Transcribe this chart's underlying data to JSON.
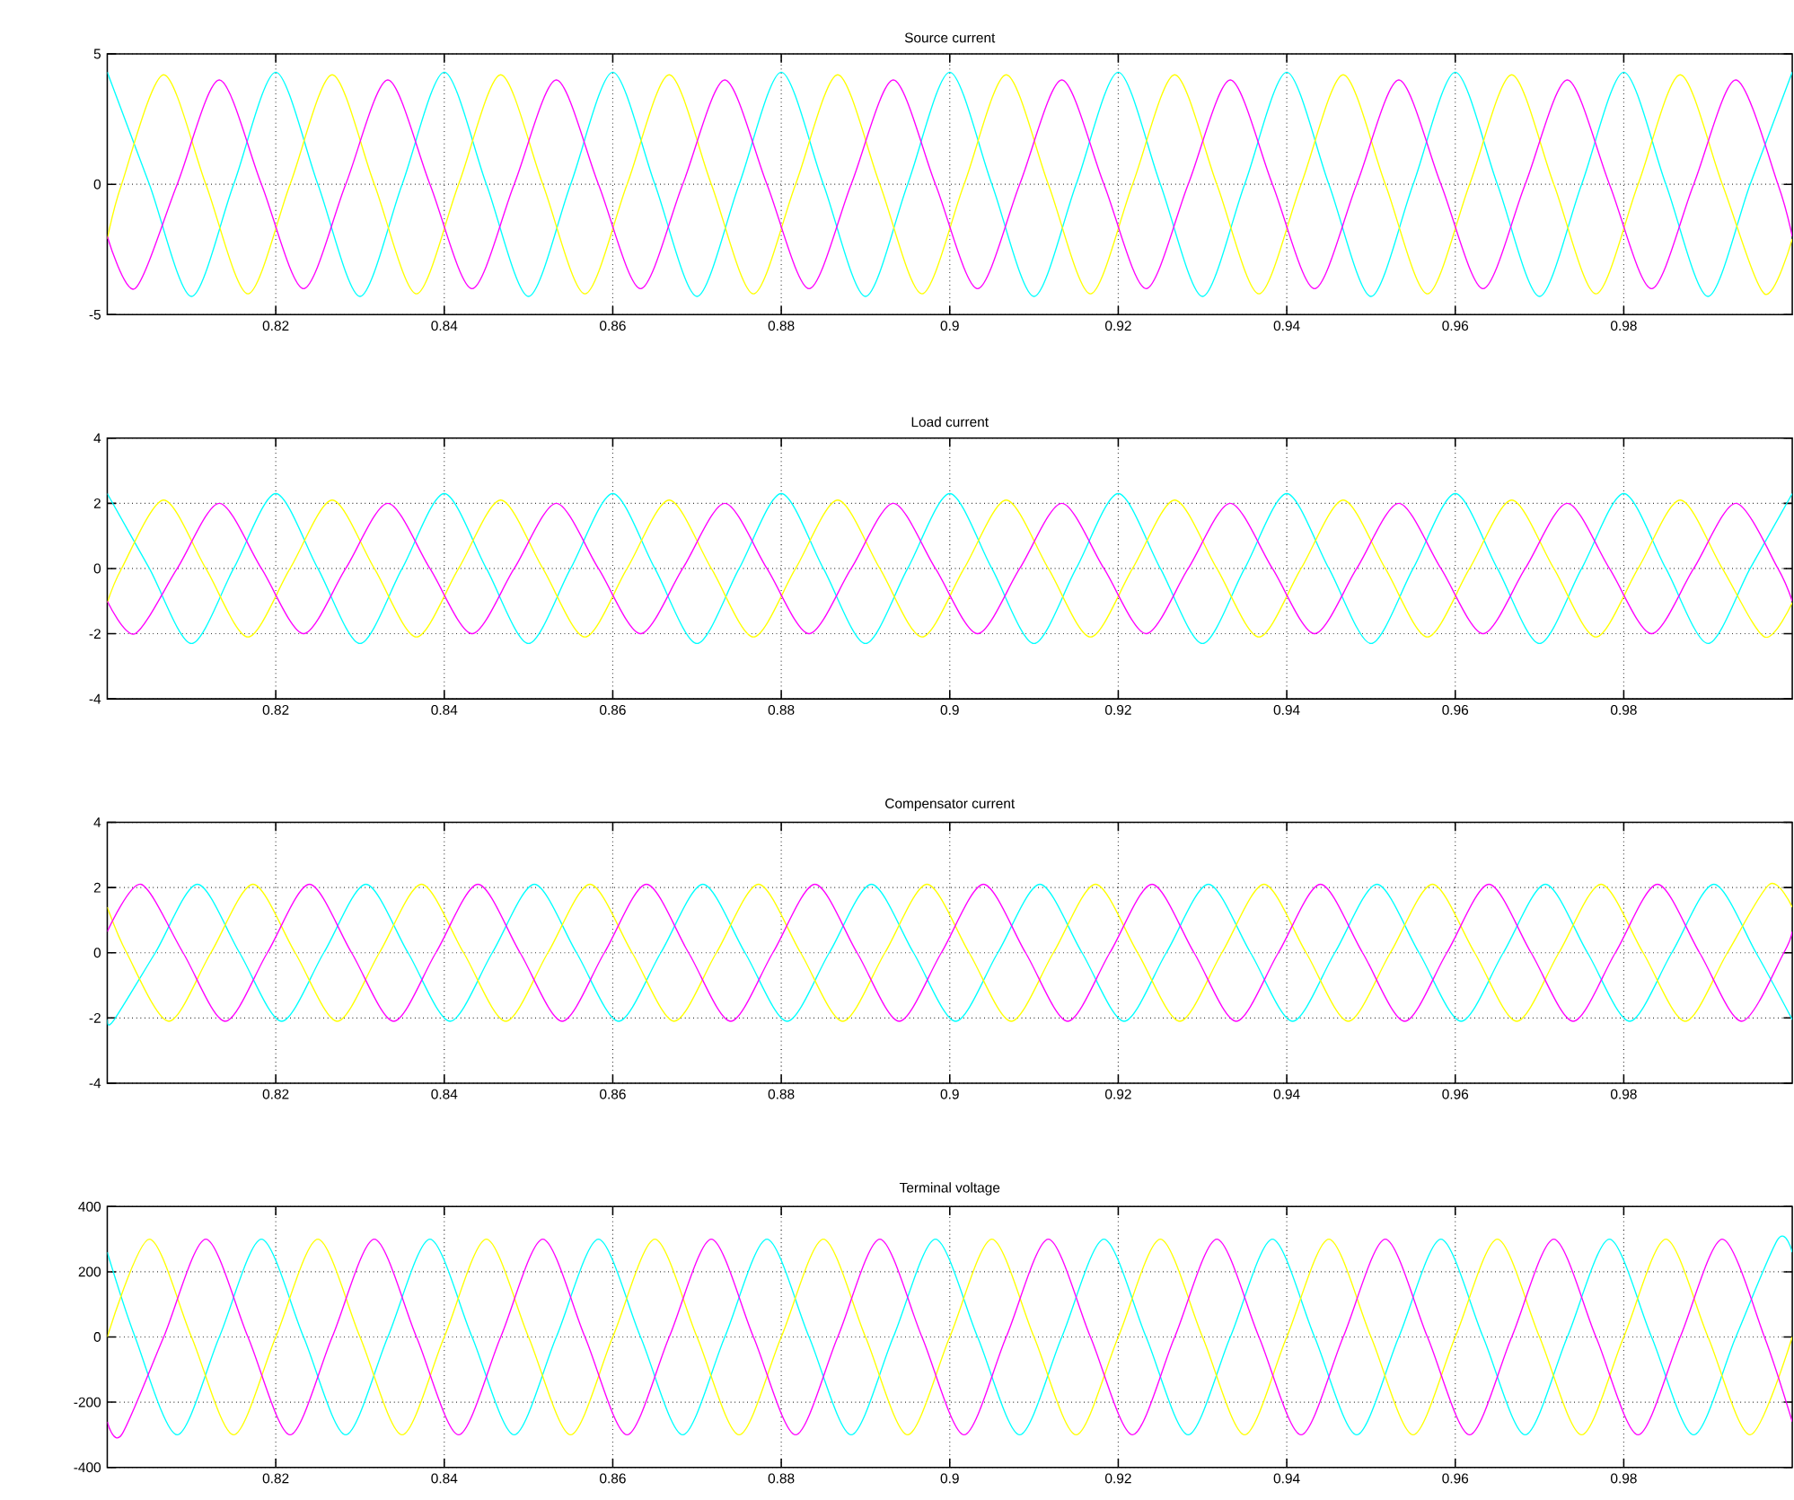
{
  "chart_data": [
    {
      "type": "line",
      "title": "Source current",
      "xlim": [
        0.8,
        1.0
      ],
      "ylim": [
        -5,
        5
      ],
      "xticks": [
        0.82,
        0.84,
        0.86,
        0.88,
        0.9,
        0.92,
        0.94,
        0.96,
        0.98
      ],
      "yticks": [
        -5,
        0,
        5
      ],
      "grid": true,
      "series": [
        {
          "color": "#00ffff",
          "x": [
            0.8,
            0.805,
            0.81,
            0.815,
            0.82,
            0.825,
            0.83,
            0.835,
            0.84,
            0.845,
            0.85,
            0.855,
            0.86,
            0.865,
            0.87,
            0.875,
            0.88,
            0.885,
            0.89,
            0.895,
            0.9,
            0.905,
            0.91,
            0.915,
            0.92,
            0.925,
            0.93,
            0.935,
            0.94,
            0.945,
            0.95,
            0.955,
            0.96,
            0.965,
            0.97,
            0.975,
            0.98,
            0.985,
            0.99,
            0.995,
            1.0
          ],
          "values": [
            4.3,
            0,
            -4.3,
            0,
            4.3,
            0,
            -4.3,
            0,
            4.3,
            0,
            -4.3,
            0,
            4.3,
            0,
            -4.3,
            0,
            4.3,
            0,
            -4.3,
            0,
            4.3,
            0,
            -4.3,
            0,
            4.3,
            0,
            -4.3,
            0,
            4.3,
            0,
            -4.3,
            0,
            4.3,
            0,
            -4.3,
            0,
            4.3,
            0,
            -4.3,
            0,
            4.3
          ]
        },
        {
          "color": "#ffff00",
          "x": [
            0.8,
            0.8017,
            0.8067,
            0.8117,
            0.8167,
            0.8217,
            0.8267,
            0.8317,
            0.8367,
            0.8417,
            0.8467,
            0.8517,
            0.8567,
            0.8617,
            0.8667,
            0.8717,
            0.8767,
            0.8817,
            0.8867,
            0.8917,
            0.8967,
            0.9017,
            0.9067,
            0.9117,
            0.9167,
            0.9217,
            0.9267,
            0.9317,
            0.9367,
            0.9417,
            0.9467,
            0.9517,
            0.9567,
            0.9617,
            0.9667,
            0.9717,
            0.9767,
            0.9817,
            0.9867,
            0.9917,
            0.9967,
            1.0
          ],
          "values": [
            -2.1,
            0,
            4.2,
            0,
            -4.2,
            0,
            4.2,
            0,
            -4.2,
            0,
            4.2,
            0,
            -4.2,
            0,
            4.2,
            0,
            -4.2,
            0,
            4.2,
            0,
            -4.2,
            0,
            4.2,
            0,
            -4.2,
            0,
            4.2,
            0,
            -4.2,
            0,
            4.2,
            0,
            -4.2,
            0,
            4.2,
            0,
            -4.2,
            0,
            4.2,
            0,
            -4.2,
            -2.1
          ]
        },
        {
          "color": "#ff00ff",
          "x": [
            0.8,
            0.8033,
            0.8083,
            0.8133,
            0.8183,
            0.8233,
            0.8283,
            0.8333,
            0.8383,
            0.8433,
            0.8483,
            0.8533,
            0.8583,
            0.8633,
            0.8683,
            0.8733,
            0.8783,
            0.8833,
            0.8883,
            0.8933,
            0.8983,
            0.9033,
            0.9083,
            0.9133,
            0.9183,
            0.9233,
            0.9283,
            0.9333,
            0.9383,
            0.9433,
            0.9483,
            0.9533,
            0.9583,
            0.9633,
            0.9683,
            0.9733,
            0.9783,
            0.9833,
            0.9883,
            0.9933,
            0.9983,
            1.0
          ],
          "values": [
            -2.0,
            -4.0,
            0,
            4.0,
            0,
            -4.0,
            0,
            4.0,
            0,
            -4.0,
            0,
            4.0,
            0,
            -4.0,
            0,
            4.0,
            0,
            -4.0,
            0,
            4.0,
            0,
            -4.0,
            0,
            4.0,
            0,
            -4.0,
            0,
            4.0,
            0,
            -4.0,
            0,
            4.0,
            0,
            -4.0,
            0,
            4.0,
            0,
            -4.0,
            0,
            4.0,
            0,
            -2.0
          ]
        }
      ]
    },
    {
      "type": "line",
      "title": "Load current",
      "xlim": [
        0.8,
        1.0
      ],
      "ylim": [
        -4,
        4
      ],
      "xticks": [
        0.82,
        0.84,
        0.86,
        0.88,
        0.9,
        0.92,
        0.94,
        0.96,
        0.98
      ],
      "yticks": [
        -4,
        -2,
        0,
        2,
        4
      ],
      "grid": true,
      "series": [
        {
          "color": "#00ffff",
          "x": [
            0.8,
            0.805,
            0.81,
            0.815,
            0.82,
            0.825,
            0.83,
            0.835,
            0.84,
            0.845,
            0.85,
            0.855,
            0.86,
            0.865,
            0.87,
            0.875,
            0.88,
            0.885,
            0.89,
            0.895,
            0.9,
            0.905,
            0.91,
            0.915,
            0.92,
            0.925,
            0.93,
            0.935,
            0.94,
            0.945,
            0.95,
            0.955,
            0.96,
            0.965,
            0.97,
            0.975,
            0.98,
            0.985,
            0.99,
            0.995,
            1.0
          ],
          "values": [
            2.3,
            0,
            -2.3,
            0,
            2.3,
            0,
            -2.3,
            0,
            2.3,
            0,
            -2.3,
            0,
            2.3,
            0,
            -2.3,
            0,
            2.3,
            0,
            -2.3,
            0,
            2.3,
            0,
            -2.3,
            0,
            2.3,
            0,
            -2.3,
            0,
            2.3,
            0,
            -2.3,
            0,
            2.3,
            0,
            -2.3,
            0,
            2.3,
            0,
            -2.3,
            0,
            2.3
          ]
        },
        {
          "color": "#ffff00",
          "x": [
            0.8,
            0.8017,
            0.8067,
            0.8117,
            0.8167,
            0.8217,
            0.8267,
            0.8317,
            0.8367,
            0.8417,
            0.8467,
            0.8517,
            0.8567,
            0.8617,
            0.8667,
            0.8717,
            0.8767,
            0.8817,
            0.8867,
            0.8917,
            0.8967,
            0.9017,
            0.9067,
            0.9117,
            0.9167,
            0.9217,
            0.9267,
            0.9317,
            0.9367,
            0.9417,
            0.9467,
            0.9517,
            0.9567,
            0.9617,
            0.9667,
            0.9717,
            0.9767,
            0.9817,
            0.9867,
            0.9917,
            0.9967,
            1.0
          ],
          "values": [
            -1.05,
            0,
            2.1,
            0,
            -2.1,
            0,
            2.1,
            0,
            -2.1,
            0,
            2.1,
            0,
            -2.1,
            0,
            2.1,
            0,
            -2.1,
            0,
            2.1,
            0,
            -2.1,
            0,
            2.1,
            0,
            -2.1,
            0,
            2.1,
            0,
            -2.1,
            0,
            2.1,
            0,
            -2.1,
            0,
            2.1,
            0,
            -2.1,
            0,
            2.1,
            0,
            -2.1,
            -1.05
          ]
        },
        {
          "color": "#ff00ff",
          "x": [
            0.8,
            0.8033,
            0.8083,
            0.8133,
            0.8183,
            0.8233,
            0.8283,
            0.8333,
            0.8383,
            0.8433,
            0.8483,
            0.8533,
            0.8583,
            0.8633,
            0.8683,
            0.8733,
            0.8783,
            0.8833,
            0.8883,
            0.8933,
            0.8983,
            0.9033,
            0.9083,
            0.9133,
            0.9183,
            0.9233,
            0.9283,
            0.9333,
            0.9383,
            0.9433,
            0.9483,
            0.9533,
            0.9583,
            0.9633,
            0.9683,
            0.9733,
            0.9783,
            0.9833,
            0.9883,
            0.9933,
            0.9983,
            1.0
          ],
          "values": [
            -1.0,
            -2.0,
            0,
            2.0,
            0,
            -2.0,
            0,
            2.0,
            0,
            -2.0,
            0,
            2.0,
            0,
            -2.0,
            0,
            2.0,
            0,
            -2.0,
            0,
            2.0,
            0,
            -2.0,
            0,
            2.0,
            0,
            -2.0,
            0,
            2.0,
            0,
            -2.0,
            0,
            2.0,
            0,
            -2.0,
            0,
            2.0,
            0,
            -2.0,
            0,
            2.0,
            0,
            -1.0
          ]
        }
      ]
    },
    {
      "type": "line",
      "title": "Compensator current",
      "xlim": [
        0.8,
        1.0
      ],
      "ylim": [
        -4,
        4
      ],
      "xticks": [
        0.82,
        0.84,
        0.86,
        0.88,
        0.9,
        0.92,
        0.94,
        0.96,
        0.98
      ],
      "yticks": [
        -4,
        -2,
        0,
        2,
        4
      ],
      "grid": true,
      "series": [
        {
          "color": "#00ffff",
          "x": [
            0.8,
            0.8007,
            0.8057,
            0.8107,
            0.8157,
            0.8207,
            0.8257,
            0.8307,
            0.8357,
            0.8407,
            0.8457,
            0.8507,
            0.8557,
            0.8607,
            0.8657,
            0.8707,
            0.8757,
            0.8807,
            0.8857,
            0.8907,
            0.8957,
            0.9007,
            0.9057,
            0.9107,
            0.9157,
            0.9207,
            0.9257,
            0.9307,
            0.9357,
            0.9407,
            0.9457,
            0.9507,
            0.9557,
            0.9607,
            0.9657,
            0.9707,
            0.9757,
            0.9807,
            0.9857,
            0.9907,
            0.9957,
            1.0
          ],
          "values": [
            -2.05,
            -2.1,
            0,
            2.1,
            0,
            -2.1,
            0,
            2.1,
            0,
            -2.1,
            0,
            2.1,
            0,
            -2.1,
            0,
            2.1,
            0,
            -2.1,
            0,
            2.1,
            0,
            -2.1,
            0,
            2.1,
            0,
            -2.1,
            0,
            2.1,
            0,
            -2.1,
            0,
            2.1,
            0,
            -2.1,
            0,
            2.1,
            0,
            -2.1,
            0,
            2.1,
            0,
            -2.05
          ]
        },
        {
          "color": "#ffff00",
          "x": [
            0.8,
            0.8023,
            0.8073,
            0.8123,
            0.8173,
            0.8223,
            0.8273,
            0.8323,
            0.8373,
            0.8423,
            0.8473,
            0.8523,
            0.8573,
            0.8623,
            0.8673,
            0.8723,
            0.8773,
            0.8823,
            0.8873,
            0.8923,
            0.8973,
            0.9023,
            0.9073,
            0.9123,
            0.9173,
            0.9223,
            0.9273,
            0.9323,
            0.9373,
            0.9423,
            0.9473,
            0.9523,
            0.9573,
            0.9623,
            0.9673,
            0.9723,
            0.9773,
            0.9823,
            0.9873,
            0.9923,
            0.9973,
            1.0
          ],
          "values": [
            1.4,
            0,
            -2.1,
            0,
            2.1,
            0,
            -2.1,
            0,
            2.1,
            0,
            -2.1,
            0,
            2.1,
            0,
            -2.1,
            0,
            2.1,
            0,
            -2.1,
            0,
            2.1,
            0,
            -2.1,
            0,
            2.1,
            0,
            -2.1,
            0,
            2.1,
            0,
            -2.1,
            0,
            2.1,
            0,
            -2.1,
            0,
            2.1,
            0,
            -2.1,
            0,
            2.1,
            1.4
          ]
        },
        {
          "color": "#ff00ff",
          "x": [
            0.8,
            0.804,
            0.809,
            0.814,
            0.819,
            0.824,
            0.829,
            0.834,
            0.839,
            0.844,
            0.849,
            0.854,
            0.859,
            0.864,
            0.869,
            0.874,
            0.879,
            0.884,
            0.889,
            0.894,
            0.899,
            0.904,
            0.909,
            0.914,
            0.919,
            0.924,
            0.929,
            0.934,
            0.939,
            0.944,
            0.949,
            0.954,
            0.959,
            0.964,
            0.969,
            0.974,
            0.979,
            0.984,
            0.989,
            0.994,
            0.999,
            1.0
          ],
          "values": [
            0.65,
            2.1,
            0,
            -2.1,
            0,
            2.1,
            0,
            -2.1,
            0,
            2.1,
            0,
            -2.1,
            0,
            2.1,
            0,
            -2.1,
            0,
            2.1,
            0,
            -2.1,
            0,
            2.1,
            0,
            -2.1,
            0,
            2.1,
            0,
            -2.1,
            0,
            2.1,
            0,
            -2.1,
            0,
            2.1,
            0,
            -2.1,
            0,
            2.1,
            0,
            -2.1,
            0,
            0.65
          ]
        }
      ]
    },
    {
      "type": "line",
      "title": "Terminal voltage",
      "xlim": [
        0.8,
        1.0
      ],
      "ylim": [
        -400,
        400
      ],
      "xticks": [
        0.82,
        0.84,
        0.86,
        0.88,
        0.9,
        0.92,
        0.94,
        0.96,
        0.98
      ],
      "yticks": [
        -400,
        -200,
        0,
        200,
        400
      ],
      "grid": true,
      "series": [
        {
          "color": "#00ffff",
          "x": [
            0.8,
            0.8033,
            0.8083,
            0.8133,
            0.8183,
            0.8233,
            0.8283,
            0.8333,
            0.8383,
            0.8433,
            0.8483,
            0.8533,
            0.8583,
            0.8633,
            0.8683,
            0.8733,
            0.8783,
            0.8833,
            0.8883,
            0.8933,
            0.8983,
            0.9033,
            0.9083,
            0.9133,
            0.9183,
            0.9233,
            0.9283,
            0.9333,
            0.9383,
            0.9433,
            0.9483,
            0.9533,
            0.9583,
            0.9633,
            0.9683,
            0.9733,
            0.9783,
            0.9833,
            0.9883,
            0.9933,
            0.9983,
            1.0
          ],
          "values": [
            260,
            0,
            -300,
            0,
            300,
            0,
            -300,
            0,
            300,
            0,
            -300,
            0,
            300,
            0,
            -300,
            0,
            300,
            0,
            -300,
            0,
            300,
            0,
            -300,
            0,
            300,
            0,
            -300,
            0,
            300,
            0,
            -300,
            0,
            300,
            0,
            -300,
            0,
            300,
            0,
            -300,
            0,
            300,
            260
          ]
        },
        {
          "color": "#ffff00",
          "x": [
            0.8,
            0.805,
            0.81,
            0.815,
            0.82,
            0.825,
            0.83,
            0.835,
            0.84,
            0.845,
            0.85,
            0.855,
            0.86,
            0.865,
            0.87,
            0.875,
            0.88,
            0.885,
            0.89,
            0.895,
            0.9,
            0.905,
            0.91,
            0.915,
            0.92,
            0.925,
            0.93,
            0.935,
            0.94,
            0.945,
            0.95,
            0.955,
            0.96,
            0.965,
            0.97,
            0.975,
            0.98,
            0.985,
            0.99,
            0.995,
            1.0
          ],
          "values": [
            0,
            300,
            0,
            -300,
            0,
            300,
            0,
            -300,
            0,
            300,
            0,
            -300,
            0,
            300,
            0,
            -300,
            0,
            300,
            0,
            -300,
            0,
            300,
            0,
            -300,
            0,
            300,
            0,
            -300,
            0,
            300,
            0,
            -300,
            0,
            300,
            0,
            -300,
            0,
            300,
            0,
            -300,
            0
          ]
        },
        {
          "color": "#ff00ff",
          "x": [
            0.8,
            0.8017,
            0.8067,
            0.8117,
            0.8167,
            0.8217,
            0.8267,
            0.8317,
            0.8367,
            0.8417,
            0.8467,
            0.8517,
            0.8567,
            0.8617,
            0.8667,
            0.8717,
            0.8767,
            0.8817,
            0.8867,
            0.8917,
            0.8967,
            0.9017,
            0.9067,
            0.9117,
            0.9167,
            0.9217,
            0.9267,
            0.9317,
            0.9367,
            0.9417,
            0.9467,
            0.9517,
            0.9567,
            0.9617,
            0.9667,
            0.9717,
            0.9767,
            0.9817,
            0.9867,
            0.9917,
            0.9967,
            1.0
          ],
          "values": [
            -260,
            -300,
            0,
            300,
            0,
            -300,
            0,
            300,
            0,
            -300,
            0,
            300,
            0,
            -300,
            0,
            300,
            0,
            -300,
            0,
            300,
            0,
            -300,
            0,
            300,
            0,
            -300,
            0,
            300,
            0,
            -300,
            0,
            300,
            0,
            -300,
            0,
            300,
            0,
            -300,
            0,
            300,
            0,
            -260
          ]
        }
      ]
    }
  ]
}
